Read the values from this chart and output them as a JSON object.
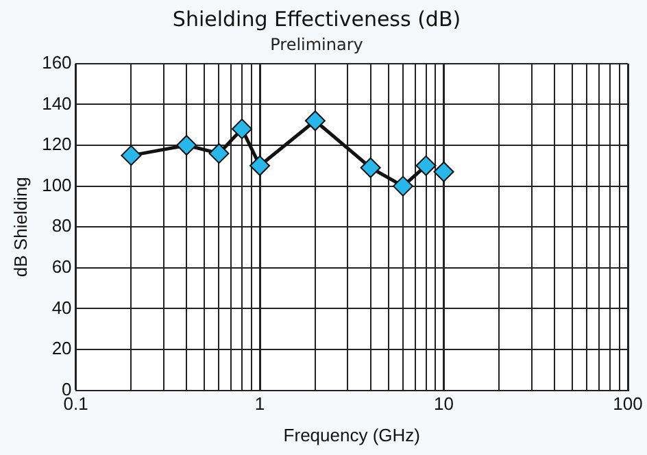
{
  "chart_data": {
    "type": "line",
    "title": "Shielding Effectiveness (dB)",
    "subtitle": "Preliminary",
    "xlabel": "Frequency (GHz)",
    "ylabel": "dB Shielding",
    "log": "x",
    "series": [
      {
        "color": "#29b6e8",
        "x": [
          0.2,
          0.4,
          0.6,
          0.8,
          1,
          2,
          4,
          6,
          8
        ],
        "values": [
          115,
          120,
          116,
          128,
          110,
          132,
          109,
          100,
          110
        ]
      },
      {
        "type": "scatter",
        "color": "#29b6e8",
        "x": [
          10
        ],
        "values": [
          107
        ]
      }
    ],
    "xlim": [
      0.1,
      100
    ],
    "xticks": [
      0.1,
      {
        "value": 0.2,
        "label": null
      },
      {
        "value": 0.3,
        "label": null
      },
      {
        "value": 0.4,
        "label": null
      },
      {
        "value": 0.5,
        "label": null
      },
      {
        "value": 0.6,
        "label": null
      },
      {
        "value": 0.7,
        "label": null
      },
      {
        "value": 0.8,
        "label": null
      },
      {
        "value": 0.9,
        "label": null
      },
      1,
      {
        "value": 2,
        "label": null
      },
      {
        "value": 3,
        "label": null
      },
      {
        "value": 4,
        "label": null
      },
      {
        "value": 5,
        "label": null
      },
      {
        "value": 6,
        "label": null
      },
      {
        "value": 7,
        "label": null
      },
      {
        "value": 8,
        "label": null
      },
      {
        "value": 9,
        "label": null
      },
      10,
      {
        "value": 20,
        "label": null
      },
      {
        "value": 30,
        "label": null
      },
      {
        "value": 40,
        "label": null
      },
      {
        "value": 50,
        "label": null
      },
      {
        "value": 60,
        "label": null
      },
      {
        "value": 70,
        "label": null
      },
      {
        "value": 80,
        "label": null
      },
      {
        "value": 90,
        "label": null
      },
      100
    ],
    "ylim": [
      0,
      160
    ],
    "yticks": [
      0,
      20,
      40,
      60,
      80,
      100,
      120,
      140,
      160
    ],
    "grid": true,
    "legend": false,
    "marker": "diamond",
    "line_style": "solid"
  }
}
